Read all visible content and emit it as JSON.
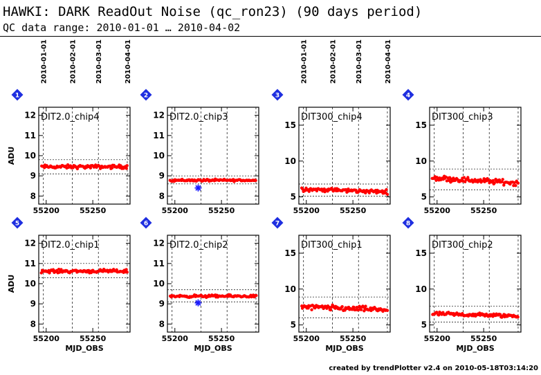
{
  "header": {
    "title": "HAWKI: DARK ReadOut Noise (qc_ron23) (90 days period)",
    "subtitle": "QC data range: 2010-01-01 … 2010-04-02"
  },
  "footer": {
    "credit": "created by trendPlotter v2.4 on 2010-05-18T03:14:20"
  },
  "date_ticks": {
    "labels": [
      "2010-01-01",
      "2010-02-01",
      "2010-03-01",
      "2010-04-01"
    ],
    "mjd": [
      55197,
      55228,
      55256,
      55287
    ]
  },
  "colors": {
    "points": "#ff0000",
    "outlier": "#1a1aff",
    "badge": "#1f2fe0",
    "axis": "#000000"
  },
  "chart_data": [
    {
      "type": "scatter",
      "index": "1",
      "title": "DIT2.0_chip4",
      "ylabel": "ADU",
      "xlabel": "",
      "xlim": [
        55192,
        55290
      ],
      "ylim": [
        7.6,
        12.4
      ],
      "yticks": [
        8,
        9,
        10,
        11,
        12
      ],
      "xticks": [
        55200,
        55250
      ],
      "mean": 9.45,
      "noise": 0.13,
      "trend": 0,
      "band": [
        9.1,
        9.8
      ],
      "outliers": []
    },
    {
      "type": "scatter",
      "index": "2",
      "title": "DIT2.0_chip3",
      "ylabel": "",
      "xlabel": "",
      "xlim": [
        55192,
        55290
      ],
      "ylim": [
        7.6,
        12.4
      ],
      "yticks": [
        8,
        9,
        10,
        11,
        12
      ],
      "xticks": [
        55200,
        55250
      ],
      "mean": 8.78,
      "noise": 0.08,
      "trend": 0,
      "band": [
        8.6,
        9.0
      ],
      "outliers": [
        {
          "x": 55225,
          "y": 8.4
        }
      ]
    },
    {
      "type": "scatter",
      "index": "3",
      "title": "DIT300_chip4",
      "ylabel": "",
      "xlabel": "",
      "xlim": [
        55192,
        55290
      ],
      "ylim": [
        4,
        17.5
      ],
      "yticks": [
        5,
        10,
        15
      ],
      "xticks": [
        55200,
        55250
      ],
      "mean": 5.9,
      "noise": 0.4,
      "trend": -0.4,
      "band": [
        5.1,
        6.8
      ],
      "outliers": []
    },
    {
      "type": "scatter",
      "index": "4",
      "title": "DIT300_chip3",
      "ylabel": "",
      "xlabel": "",
      "xlim": [
        55192,
        55290
      ],
      "ylim": [
        4,
        17.5
      ],
      "yticks": [
        5,
        10,
        15
      ],
      "xticks": [
        55200,
        55250
      ],
      "mean": 7.3,
      "noise": 0.55,
      "trend": -0.7,
      "band": [
        6.0,
        8.9
      ],
      "outliers": []
    },
    {
      "type": "scatter",
      "index": "5",
      "title": "DIT2.0_chip1",
      "ylabel": "ADU",
      "xlabel": "MJD_OBS",
      "xlim": [
        55192,
        55290
      ],
      "ylim": [
        7.6,
        12.4
      ],
      "yticks": [
        8,
        9,
        10,
        11,
        12
      ],
      "xticks": [
        55200,
        55250
      ],
      "mean": 10.62,
      "noise": 0.12,
      "trend": 0,
      "band": [
        10.3,
        11.0
      ],
      "outliers": []
    },
    {
      "type": "scatter",
      "index": "6",
      "title": "DIT2.0_chip2",
      "ylabel": "",
      "xlabel": "MJD_OBS",
      "xlim": [
        55192,
        55290
      ],
      "ylim": [
        7.6,
        12.4
      ],
      "yticks": [
        8,
        9,
        10,
        11,
        12
      ],
      "xticks": [
        55200,
        55250
      ],
      "mean": 9.38,
      "noise": 0.09,
      "trend": 0,
      "band": [
        9.1,
        9.7
      ],
      "outliers": [
        {
          "x": 55225,
          "y": 9.05
        }
      ]
    },
    {
      "type": "scatter",
      "index": "7",
      "title": "DIT300_chip1",
      "ylabel": "",
      "xlabel": "MJD_OBS",
      "xlim": [
        55192,
        55290
      ],
      "ylim": [
        4,
        17.5
      ],
      "yticks": [
        5,
        10,
        15
      ],
      "xticks": [
        55200,
        55250
      ],
      "mean": 7.3,
      "noise": 0.55,
      "trend": -0.4,
      "band": [
        6.0,
        8.9
      ],
      "outliers": []
    },
    {
      "type": "scatter",
      "index": "8",
      "title": "DIT300_chip2",
      "ylabel": "",
      "xlabel": "MJD_OBS",
      "xlim": [
        55192,
        55290
      ],
      "ylim": [
        4,
        17.5
      ],
      "yticks": [
        5,
        10,
        15
      ],
      "xticks": [
        55200,
        55250
      ],
      "mean": 6.4,
      "noise": 0.4,
      "trend": -0.3,
      "band": [
        5.4,
        7.6
      ],
      "outliers": []
    }
  ]
}
